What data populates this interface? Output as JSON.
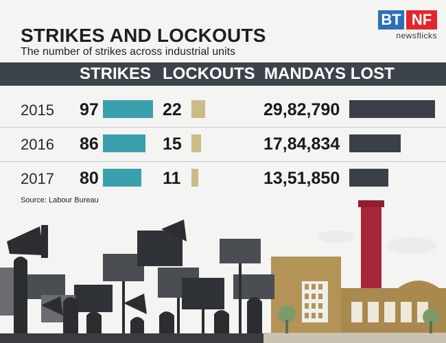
{
  "title": "STRIKES AND LOCKOUTS",
  "subtitle": "The number of strikes across industrial units",
  "logo": {
    "bt": "BT",
    "nf": "NF",
    "sub": "newsflicks"
  },
  "columns": {
    "strikes": "STRIKES",
    "lockouts": "LOCKOUTS",
    "mandays": "MANDAYS LOST"
  },
  "source": "Source: Labour Bureau",
  "colors": {
    "strikes": "#3aa0ad",
    "lockouts": "#cbbb88",
    "mandays": "#3b4048",
    "header": "#3d434b"
  },
  "chart_data": {
    "type": "table",
    "title": "STRIKES AND LOCKOUTS",
    "subtitle": "The number of strikes across industrial units",
    "categories": [
      "2015",
      "2016",
      "2017"
    ],
    "series": [
      {
        "name": "STRIKES",
        "values": [
          97,
          86,
          80
        ]
      },
      {
        "name": "LOCKOUTS",
        "values": [
          22,
          15,
          11
        ]
      },
      {
        "name": "MANDAYS LOST",
        "values": [
          2982790,
          1784834,
          1351850
        ]
      }
    ],
    "labels": {
      "STRIKES": [
        "97",
        "86",
        "80"
      ],
      "LOCKOUTS": [
        "22",
        "15",
        "11"
      ],
      "MANDAYS LOST": [
        "29,82,790",
        "17,84,834",
        "13,51,850"
      ]
    },
    "source": "Source: Labour Bureau"
  }
}
